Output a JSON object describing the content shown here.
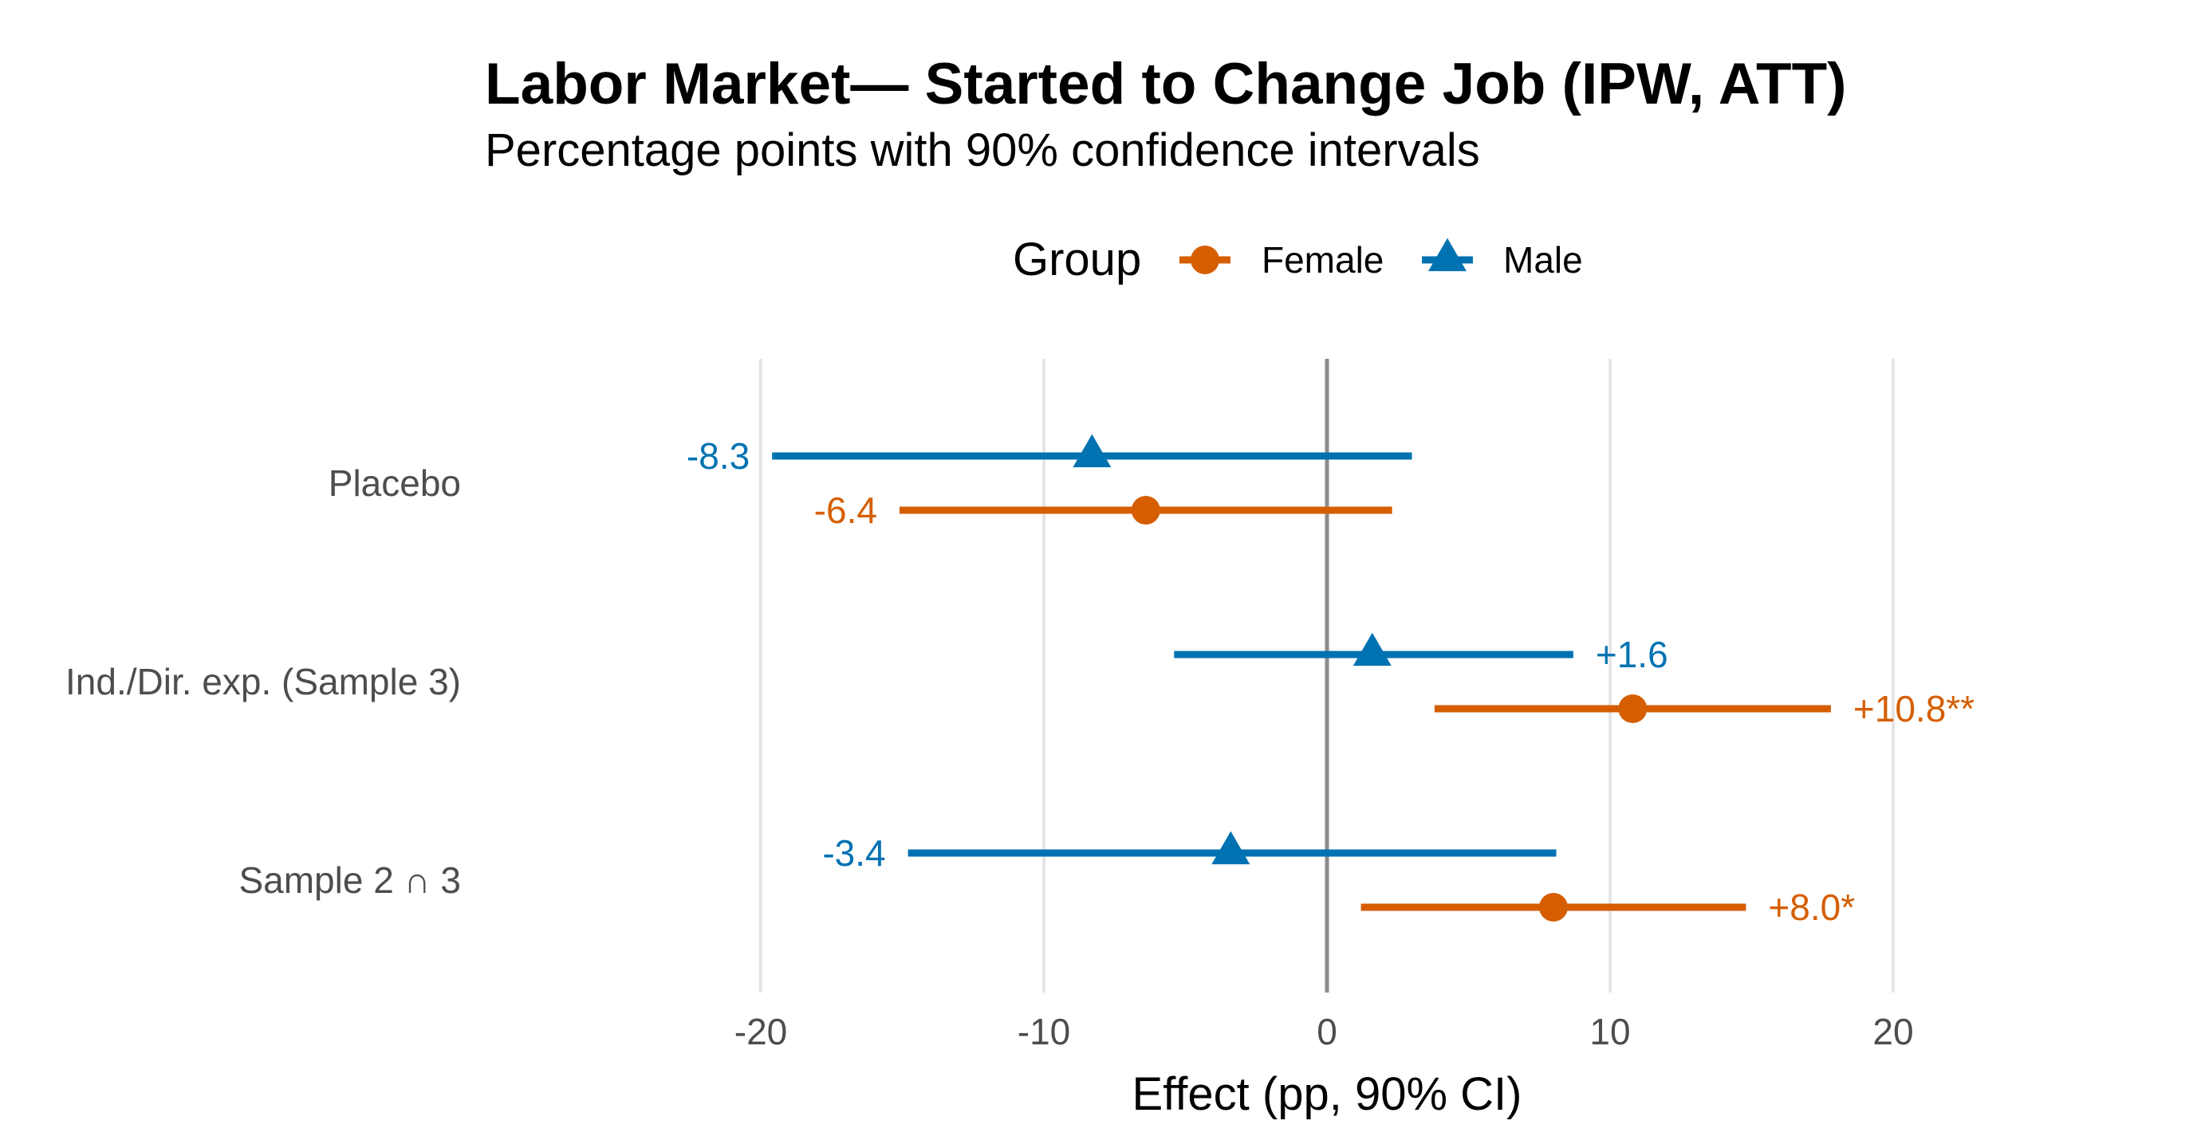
{
  "chart_data": {
    "type": "forest",
    "title": "Labor Market— Started to Change Job (IPW, ATT)",
    "subtitle": "Percentage points with 90% confidence intervals",
    "xlabel": "Effect (pp, 90% CI)",
    "ylabel": "",
    "xlim": [
      -22,
      22
    ],
    "x_ticks": [
      -20,
      -10,
      0,
      10,
      20
    ],
    "x_tick_labels": [
      "-20",
      "-10",
      "0",
      "10",
      "20"
    ],
    "reference_line": 0,
    "grid": "vertical major",
    "legend": {
      "title": "Group",
      "position": "top",
      "entries": [
        {
          "label": "Female",
          "shape": "circle"
        },
        {
          "label": "Male",
          "shape": "triangle"
        }
      ]
    },
    "categories": [
      "Placebo",
      "Ind./Dir. exp. (Sample 3)",
      "Sample 2 ∩ 3"
    ],
    "series": [
      {
        "name": "Male",
        "color": "#0072B2",
        "marker": "triangle",
        "estimates": [
          -8.3,
          1.6,
          -3.4
        ],
        "ci_low": [
          -19.6,
          -5.4,
          -14.8
        ],
        "ci_high": [
          3.0,
          8.7,
          8.1
        ],
        "labels": [
          "-8.3",
          "+1.6",
          "-3.4"
        ],
        "label_side": [
          "left",
          "right",
          "left"
        ]
      },
      {
        "name": "Female",
        "color": "#D55E00",
        "marker": "circle",
        "estimates": [
          -6.4,
          10.8,
          8.0
        ],
        "ci_low": [
          -15.1,
          3.8,
          1.2
        ],
        "ci_high": [
          2.3,
          17.8,
          14.8
        ],
        "labels": [
          "-6.4",
          "+10.8**",
          "+8.0*"
        ],
        "label_side": [
          "left",
          "right",
          "right"
        ]
      }
    ]
  }
}
